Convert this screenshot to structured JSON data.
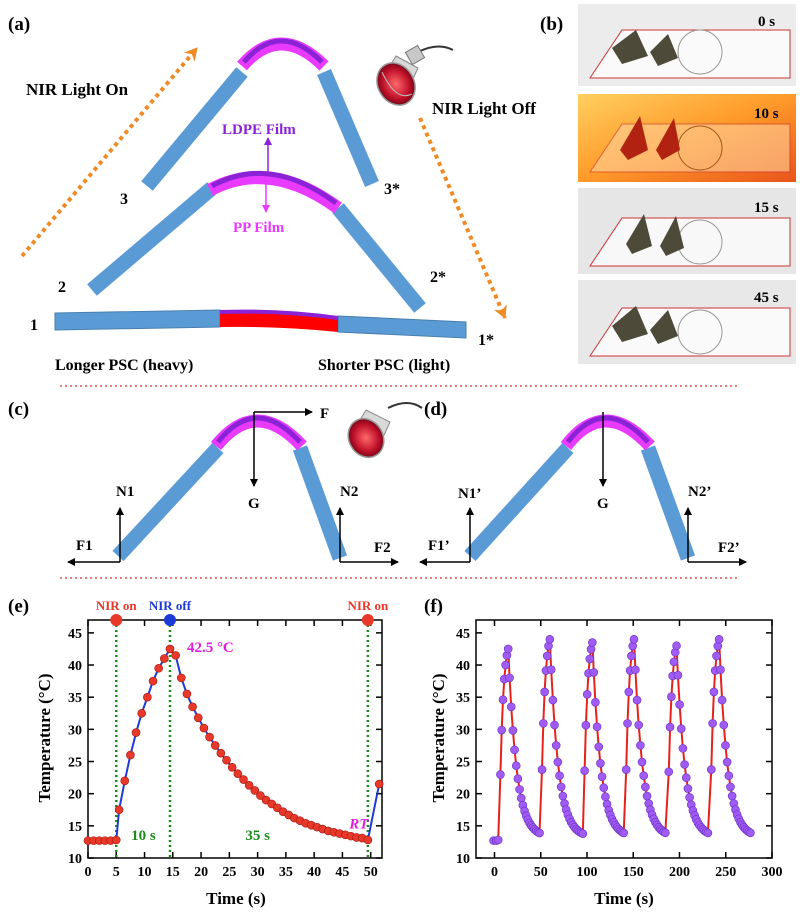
{
  "colors": {
    "psc_blue": "#5b9bd5",
    "psc_edge": "#4a7fae",
    "film_magenta": "#e83bff",
    "film_purple": "#8b22d6",
    "film_red": "#ff0000",
    "arrow_orange": "#f08a24",
    "divider_red": "#e05050",
    "curve_blue": "#1f3bd6",
    "point_red": "#e8382a",
    "point_purple": "#a05bf5",
    "curve_red": "#e8221a",
    "ann_green": "#1a8c1a",
    "ann_magenta": "#e01ee0",
    "nir_off_blue": "#1f3bd6"
  },
  "panel_a": {
    "label": "(a)",
    "nir_on": "NIR Light On",
    "nir_off": "NIR Light Off",
    "ldpe": "LDPE Film",
    "pp": "PP Film",
    "stage_labels": [
      "1",
      "2",
      "3",
      "1*",
      "2*",
      "3*"
    ],
    "longer": "Longer PSC (heavy)",
    "shorter": "Shorter PSC (light)",
    "lamp_icon": "heat-lamp-icon"
  },
  "panel_b": {
    "label": "(b)",
    "times": [
      "0 s",
      "10 s",
      "15 s",
      "45 s"
    ]
  },
  "panel_c": {
    "label": "(c)",
    "forces": {
      "F": "F",
      "G": "G",
      "N1": "N1",
      "N2": "N2",
      "F1": "F1",
      "F2": "F2"
    }
  },
  "panel_d": {
    "label": "(d)",
    "forces": {
      "G": "G",
      "N1": "N1’",
      "N2": "N2’",
      "F1": "F1’",
      "F2": "F2’"
    }
  },
  "chart_data": [
    {
      "panel": "(e)",
      "type": "scatter",
      "xlabel": "Time (s)",
      "ylabel": "Temperature (°C)",
      "xlim": [
        0,
        52
      ],
      "ylim": [
        10,
        47
      ],
      "xticks": [
        0,
        5,
        10,
        15,
        20,
        25,
        30,
        35,
        40,
        45,
        50
      ],
      "yticks": [
        10,
        15,
        20,
        25,
        30,
        35,
        40,
        45
      ],
      "markers": [
        {
          "label": "NIR on",
          "x": 5
        },
        {
          "label": "NIR off",
          "x": 14.5
        },
        {
          "label": "NIR on",
          "x": 49.5
        }
      ],
      "annotations": [
        "42.5 °C",
        "10 s",
        "35 s",
        "RT"
      ],
      "x": [
        0,
        1,
        2,
        3,
        4,
        5,
        5.5,
        6.5,
        7.5,
        8.5,
        9.5,
        10.5,
        11.5,
        12.5,
        13.5,
        14.5,
        15.5,
        16.5,
        17.5,
        18.5,
        19.5,
        20.5,
        21.5,
        22.5,
        23.5,
        24.5,
        25.5,
        26.5,
        27.5,
        28.5,
        29.5,
        30.5,
        31.5,
        32.5,
        33.5,
        34.5,
        35.5,
        36.5,
        37.5,
        38.5,
        39.5,
        40.5,
        41.5,
        42.5,
        43.5,
        44.5,
        45.5,
        46.5,
        47.5,
        48.5,
        49.5,
        51.5
      ],
      "y": [
        12.7,
        12.7,
        12.7,
        12.7,
        12.7,
        12.8,
        17.5,
        22,
        26,
        29.5,
        32.5,
        35,
        37.5,
        39.5,
        41,
        42.5,
        41.5,
        38,
        35.5,
        33.5,
        31.8,
        30.2,
        28.8,
        27.5,
        26.3,
        25.2,
        24.1,
        23.1,
        22.2,
        21.3,
        20.5,
        19.7,
        19.0,
        18.4,
        17.8,
        17.2,
        16.7,
        16.2,
        15.8,
        15.4,
        15.1,
        14.8,
        14.5,
        14.2,
        14.0,
        13.8,
        13.6,
        13.4,
        13.2,
        13.1,
        12.8,
        21.5
      ]
    },
    {
      "panel": "(f)",
      "type": "scatter",
      "xlabel": "Time (s)",
      "ylabel": "Temperature (°C)",
      "xlim": [
        -20,
        300
      ],
      "ylim": [
        10,
        47
      ],
      "xticks": [
        0,
        50,
        100,
        150,
        200,
        250,
        300
      ],
      "yticks": [
        10,
        15,
        20,
        25,
        30,
        35,
        40,
        45
      ],
      "cycles": [
        {
          "start": 5,
          "peak": 42.5
        },
        {
          "start": 50,
          "peak": 44
        },
        {
          "start": 96,
          "peak": 43.5
        },
        {
          "start": 141,
          "peak": 44
        },
        {
          "start": 187,
          "peak": 43
        },
        {
          "start": 233,
          "peak": 44
        }
      ]
    }
  ]
}
